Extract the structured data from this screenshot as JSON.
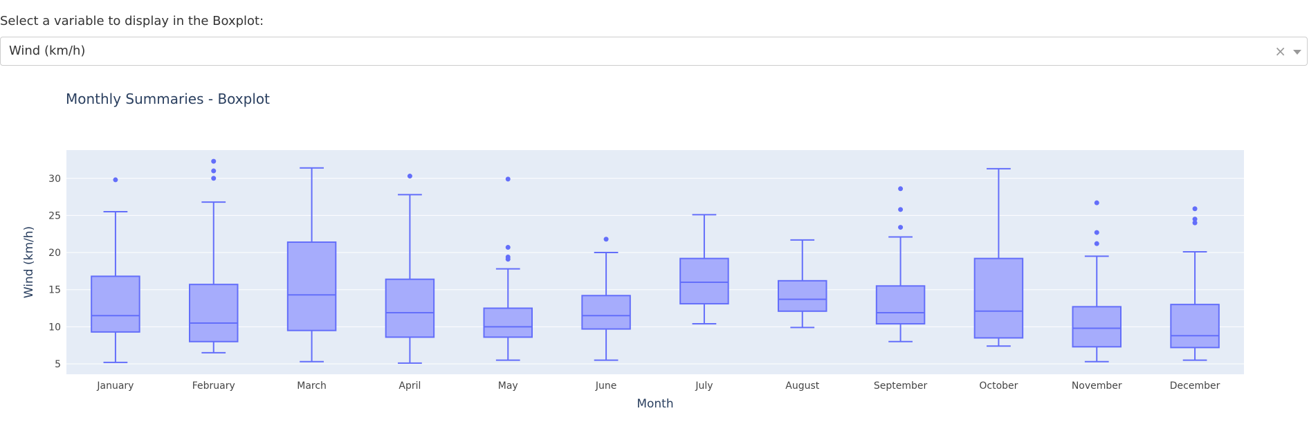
{
  "control": {
    "prompt": "Select a variable to display in the Boxplot:",
    "selected": "Wind (km/h)",
    "clear_symbol": "×",
    "arrow_icon": "chevron-down-icon"
  },
  "chart_data": {
    "type": "box",
    "title": "Monthly Summaries -  Boxplot",
    "xlabel": "Month",
    "ylabel": "Wind (km/h)",
    "ylim": [
      3.6,
      33.8
    ],
    "yticks": [
      5,
      10,
      15,
      20,
      25,
      30
    ],
    "grid": true,
    "colors": {
      "box_line": "#636efa",
      "box_fill": "#a6acfc",
      "plot_bg": "#e5ecf6",
      "grid": "#ffffff"
    },
    "categories": [
      "January",
      "February",
      "March",
      "April",
      "May",
      "June",
      "July",
      "August",
      "September",
      "October",
      "November",
      "December"
    ],
    "boxes": [
      {
        "min": 5.2,
        "q1": 9.3,
        "median": 11.5,
        "q3": 16.8,
        "max": 25.5,
        "outliers": [
          29.8
        ]
      },
      {
        "min": 6.5,
        "q1": 8.0,
        "median": 10.5,
        "q3": 15.7,
        "max": 26.8,
        "outliers": [
          30.0,
          31.0,
          32.3
        ]
      },
      {
        "min": 5.3,
        "q1": 9.5,
        "median": 14.3,
        "q3": 21.4,
        "max": 31.4,
        "outliers": []
      },
      {
        "min": 5.1,
        "q1": 8.6,
        "median": 11.9,
        "q3": 16.4,
        "max": 27.8,
        "outliers": [
          30.3
        ]
      },
      {
        "min": 5.5,
        "q1": 8.6,
        "median": 10.0,
        "q3": 12.5,
        "max": 17.8,
        "outliers": [
          19.1,
          19.4,
          20.7,
          29.9
        ]
      },
      {
        "min": 5.5,
        "q1": 9.7,
        "median": 11.5,
        "q3": 14.2,
        "max": 20.0,
        "outliers": [
          21.8
        ]
      },
      {
        "min": 10.4,
        "q1": 13.1,
        "median": 16.0,
        "q3": 19.2,
        "max": 25.1,
        "outliers": []
      },
      {
        "min": 9.9,
        "q1": 12.1,
        "median": 13.7,
        "q3": 16.2,
        "max": 21.7,
        "outliers": []
      },
      {
        "min": 8.0,
        "q1": 10.4,
        "median": 11.9,
        "q3": 15.5,
        "max": 22.1,
        "outliers": [
          23.4,
          25.8,
          28.6
        ]
      },
      {
        "min": 7.4,
        "q1": 8.5,
        "median": 12.1,
        "q3": 19.2,
        "max": 31.3,
        "outliers": []
      },
      {
        "min": 5.3,
        "q1": 7.3,
        "median": 9.8,
        "q3": 12.7,
        "max": 19.5,
        "outliers": [
          21.2,
          22.7,
          26.7
        ]
      },
      {
        "min": 5.5,
        "q1": 7.2,
        "median": 8.8,
        "q3": 13.0,
        "max": 20.1,
        "outliers": [
          24.0,
          24.5,
          25.9
        ]
      }
    ]
  }
}
